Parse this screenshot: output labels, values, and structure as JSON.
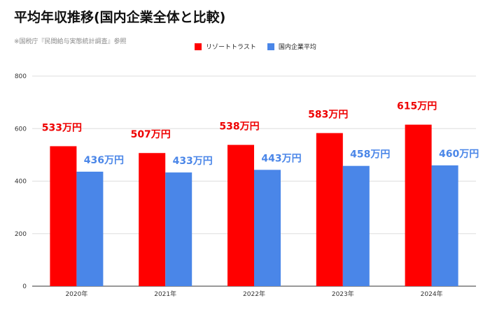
{
  "title": "平均年収推移(国内企業全体と比較)",
  "subtitle": "※国税庁『民間給与実態統計調査』参照",
  "colors": {
    "series1": "#ff0000",
    "series2": "#4a86e8",
    "grid": "#dddddd",
    "axis": "#333333"
  },
  "chart_data": {
    "type": "bar",
    "categories": [
      "2020年",
      "2021年",
      "2022年",
      "2023年",
      "2024年"
    ],
    "series": [
      {
        "name": "リゾートトラスト",
        "values": [
          533,
          507,
          538,
          583,
          615
        ],
        "labels": [
          "533万円",
          "507万円",
          "538万円",
          "583万円",
          "615万円"
        ]
      },
      {
        "name": "国内企業平均",
        "values": [
          436,
          433,
          443,
          458,
          460
        ],
        "labels": [
          "436万円",
          "433万円",
          "443万円",
          "458万円",
          "460万円"
        ]
      }
    ],
    "ylim": [
      0,
      800
    ],
    "yticks": [
      0,
      200,
      400,
      600,
      800
    ],
    "ytick_labels": [
      "0",
      "200",
      "400",
      "600",
      "800"
    ],
    "grid": true,
    "legend_position": "top"
  }
}
